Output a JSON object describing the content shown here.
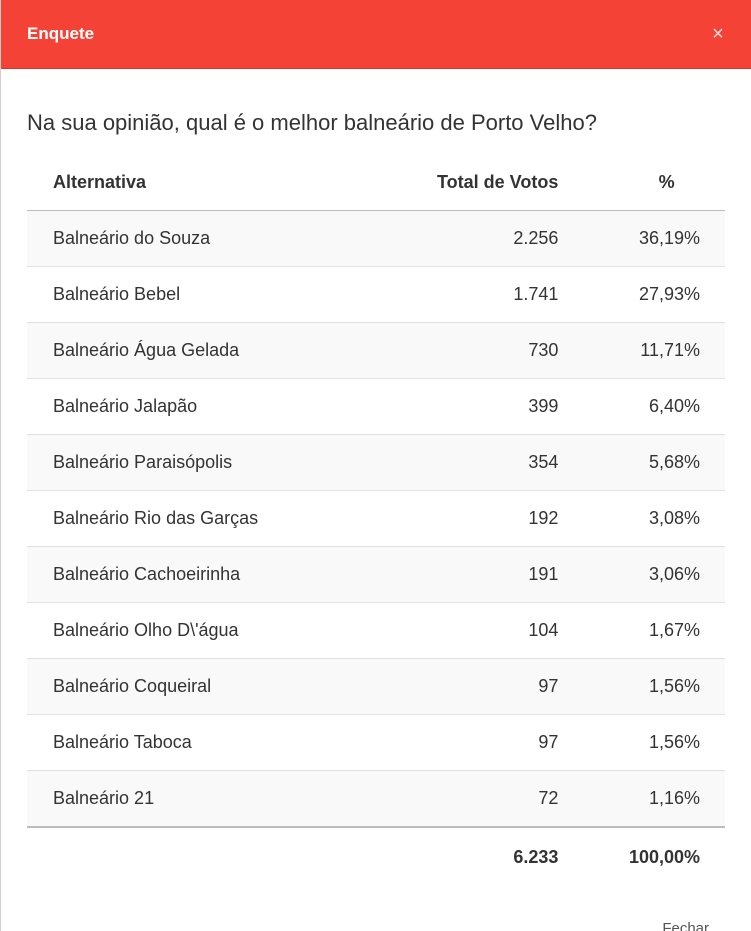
{
  "modal": {
    "title": "Enquete",
    "close_label": "×",
    "question": "Na sua opinião, qual é o melhor balneário de Porto Velho?",
    "footer_button": "Fechar"
  },
  "table": {
    "headers": {
      "alternative": "Alternativa",
      "votes": "Total de Votos",
      "percent": "%"
    },
    "rows": [
      {
        "alternative": "Balneário do Souza",
        "votes": "2.256",
        "percent": "36,19%"
      },
      {
        "alternative": "Balneário Bebel",
        "votes": "1.741",
        "percent": "27,93%"
      },
      {
        "alternative": "Balneário Água Gelada",
        "votes": "730",
        "percent": "11,71%"
      },
      {
        "alternative": "Balneário Jalapão",
        "votes": "399",
        "percent": "6,40%"
      },
      {
        "alternative": "Balneário Paraisópolis",
        "votes": "354",
        "percent": "5,68%"
      },
      {
        "alternative": "Balneário Rio das Garças",
        "votes": "192",
        "percent": "3,08%"
      },
      {
        "alternative": "Balneário Cachoeirinha",
        "votes": "191",
        "percent": "3,06%"
      },
      {
        "alternative": "Balneário Olho D\\'água",
        "votes": "104",
        "percent": "1,67%"
      },
      {
        "alternative": "Balneário Coqueiral",
        "votes": "97",
        "percent": "1,56%"
      },
      {
        "alternative": "Balneário Taboca",
        "votes": "97",
        "percent": "1,56%"
      },
      {
        "alternative": "Balneário 21",
        "votes": "72",
        "percent": "1,16%"
      }
    ],
    "totals": {
      "votes": "6.233",
      "percent": "100,00%"
    }
  }
}
